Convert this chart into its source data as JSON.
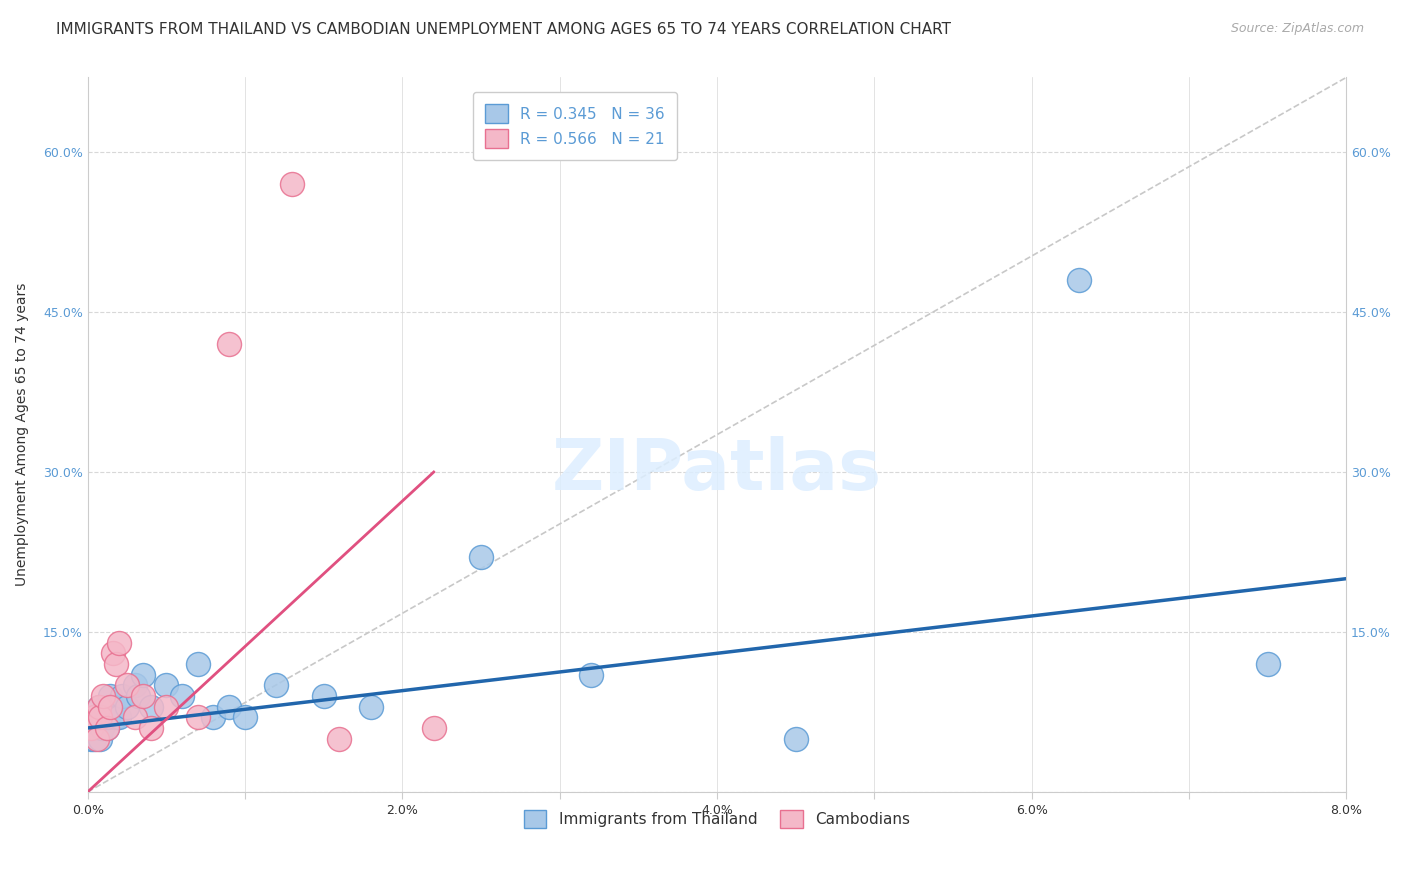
{
  "title": "IMMIGRANTS FROM THAILAND VS CAMBODIAN UNEMPLOYMENT AMONG AGES 65 TO 74 YEARS CORRELATION CHART",
  "source": "Source: ZipAtlas.com",
  "ylabel_left": "Unemployment Among Ages 65 to 74 years",
  "x_tick_positions": [
    0.0,
    0.01,
    0.02,
    0.03,
    0.04,
    0.05,
    0.06,
    0.07,
    0.08
  ],
  "x_tick_labels": [
    "0.0%",
    "",
    "2.0%",
    "",
    "4.0%",
    "",
    "6.0%",
    "",
    "8.0%"
  ],
  "y_tick_positions": [
    0.0,
    0.15,
    0.3,
    0.45,
    0.6
  ],
  "y_tick_labels": [
    "",
    "15.0%",
    "30.0%",
    "45.0%",
    "60.0%"
  ],
  "xlim": [
    0.0,
    0.08
  ],
  "ylim": [
    0.0,
    0.67
  ],
  "legend_r1": "R = 0.345",
  "legend_n1": "N = 36",
  "legend_r2": "R = 0.566",
  "legend_n2": "N = 21",
  "legend_label1": "Immigrants from Thailand",
  "legend_label2": "Cambodians",
  "color_blue_face": "#a8c8e8",
  "color_blue_edge": "#5b9bd5",
  "color_pink_face": "#f4b8c8",
  "color_pink_edge": "#e87090",
  "color_blue_line": "#2166ac",
  "color_pink_line": "#e05080",
  "color_diag": "#c8c8c8",
  "color_grid": "#d8d8d8",
  "color_tick_label": "#5b9bd5",
  "title_fontsize": 11,
  "source_fontsize": 9,
  "axis_label_fontsize": 10,
  "tick_fontsize": 9,
  "legend_fontsize": 11,
  "thailand_x": [
    0.0002,
    0.0003,
    0.0004,
    0.0005,
    0.0006,
    0.0007,
    0.0008,
    0.0009,
    0.001,
    0.0011,
    0.0012,
    0.0013,
    0.0014,
    0.0016,
    0.0018,
    0.002,
    0.0022,
    0.0025,
    0.003,
    0.0032,
    0.0035,
    0.004,
    0.005,
    0.006,
    0.007,
    0.008,
    0.009,
    0.01,
    0.012,
    0.015,
    0.018,
    0.025,
    0.032,
    0.045,
    0.063,
    0.075
  ],
  "thailand_y": [
    0.05,
    0.06,
    0.05,
    0.07,
    0.06,
    0.08,
    0.05,
    0.06,
    0.07,
    0.08,
    0.06,
    0.07,
    0.09,
    0.08,
    0.07,
    0.07,
    0.09,
    0.08,
    0.1,
    0.09,
    0.11,
    0.08,
    0.1,
    0.09,
    0.12,
    0.07,
    0.08,
    0.07,
    0.1,
    0.09,
    0.08,
    0.22,
    0.11,
    0.05,
    0.48,
    0.12
  ],
  "cambodian_x": [
    0.0002,
    0.0004,
    0.0006,
    0.0007,
    0.0008,
    0.001,
    0.0012,
    0.0014,
    0.0016,
    0.0018,
    0.002,
    0.0025,
    0.003,
    0.0035,
    0.004,
    0.005,
    0.007,
    0.009,
    0.013,
    0.016,
    0.022
  ],
  "cambodian_y": [
    0.06,
    0.07,
    0.05,
    0.08,
    0.07,
    0.09,
    0.06,
    0.08,
    0.13,
    0.12,
    0.14,
    0.1,
    0.07,
    0.09,
    0.06,
    0.08,
    0.07,
    0.42,
    0.57,
    0.05,
    0.06
  ],
  "blue_line_x0": 0.0,
  "blue_line_y0": 0.06,
  "blue_line_x1": 0.08,
  "blue_line_y1": 0.2,
  "pink_line_x0": 0.0,
  "pink_line_y0": 0.0,
  "pink_line_x1": 0.022,
  "pink_line_y1": 0.3
}
